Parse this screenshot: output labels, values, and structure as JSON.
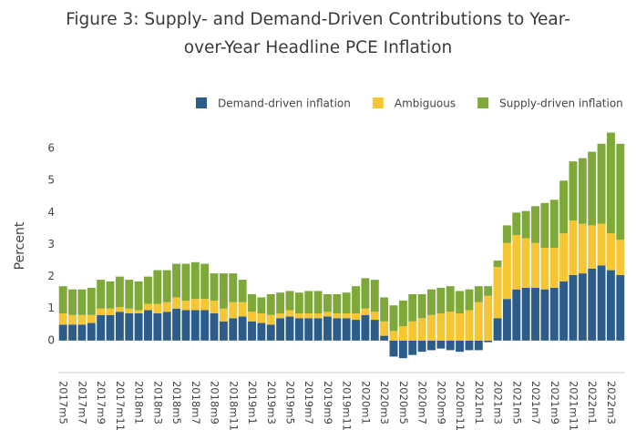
{
  "chart_data": {
    "type": "stacked_bar",
    "title": "Figure 3: Supply- and Demand-Driven Contributions to Year-over-Year Headline PCE Inflation",
    "y_label": "Percent",
    "categories": [
      "2017m5",
      null,
      "2017m7",
      null,
      "2017m9",
      null,
      "2017m11",
      null,
      "2018m1",
      null,
      "2018m3",
      null,
      "2018m5",
      null,
      "2018m7",
      null,
      "2018m9",
      null,
      "2018m11",
      null,
      "2019m1",
      null,
      "2019m3",
      null,
      "2019m5",
      null,
      "2019m7",
      null,
      "2019m9",
      null,
      "2019m11",
      null,
      "2020m1",
      null,
      "2020m3",
      null,
      "2020m5",
      null,
      "2020m7",
      null,
      "2020m9",
      null,
      "2020m11",
      null,
      "2021m1",
      null,
      "2021m3",
      null,
      "2021m5",
      null,
      "2021m7",
      null,
      "2021m9",
      null,
      "2021m11",
      null,
      "2022m1",
      null,
      "2022m3",
      null
    ],
    "series": [
      {
        "name": "Demand-driven inflation",
        "color": "#2c5d8a",
        "values": [
          0.5,
          0.5,
          0.5,
          0.55,
          0.8,
          0.8,
          0.9,
          0.85,
          0.85,
          0.95,
          0.85,
          0.9,
          1.0,
          0.95,
          0.95,
          0.95,
          0.85,
          0.6,
          0.7,
          0.75,
          0.6,
          0.55,
          0.5,
          0.7,
          0.75,
          0.7,
          0.7,
          0.7,
          0.75,
          0.7,
          0.7,
          0.65,
          0.8,
          0.65,
          0.15,
          -0.5,
          -0.55,
          -0.45,
          -0.35,
          -0.3,
          -0.25,
          -0.3,
          -0.35,
          -0.3,
          -0.3,
          -0.05,
          0.7,
          1.3,
          1.6,
          1.65,
          1.65,
          1.6,
          1.65,
          1.85,
          2.05,
          2.1,
          2.25,
          2.35,
          2.2,
          2.05
        ]
      },
      {
        "name": "Ambiguous",
        "color": "#f5c533",
        "values": [
          0.35,
          0.3,
          0.3,
          0.25,
          0.2,
          0.2,
          0.15,
          0.15,
          0.1,
          0.2,
          0.3,
          0.3,
          0.35,
          0.3,
          0.35,
          0.35,
          0.4,
          0.4,
          0.5,
          0.45,
          0.3,
          0.3,
          0.3,
          0.15,
          0.2,
          0.15,
          0.15,
          0.15,
          0.15,
          0.15,
          0.15,
          0.2,
          0.2,
          0.25,
          0.45,
          0.3,
          0.45,
          0.6,
          0.7,
          0.8,
          0.85,
          0.9,
          0.85,
          0.95,
          1.2,
          1.4,
          1.6,
          1.75,
          1.7,
          1.55,
          1.4,
          1.3,
          1.25,
          1.5,
          1.7,
          1.55,
          1.35,
          1.3,
          1.15,
          1.1
        ]
      },
      {
        "name": "Supply-driven inflation",
        "color": "#7ea83a",
        "values": [
          0.85,
          0.8,
          0.8,
          0.85,
          0.9,
          0.85,
          0.95,
          0.9,
          0.9,
          0.85,
          1.05,
          1.0,
          1.05,
          1.15,
          1.15,
          1.1,
          0.85,
          1.1,
          0.9,
          0.7,
          0.55,
          0.5,
          0.65,
          0.65,
          0.6,
          0.65,
          0.7,
          0.7,
          0.55,
          0.6,
          0.65,
          0.85,
          0.95,
          1.0,
          0.75,
          0.8,
          0.8,
          0.85,
          0.75,
          0.8,
          0.8,
          0.8,
          0.7,
          0.65,
          0.5,
          0.3,
          0.2,
          0.55,
          0.7,
          0.85,
          1.15,
          1.4,
          1.5,
          1.65,
          1.85,
          2.05,
          2.3,
          2.5,
          3.15,
          3.0
        ]
      }
    ],
    "ylim": [
      -1,
      6.8
    ],
    "yticks": [
      0,
      1,
      2,
      3,
      4,
      5,
      6
    ],
    "grid": false,
    "legend": "top"
  }
}
